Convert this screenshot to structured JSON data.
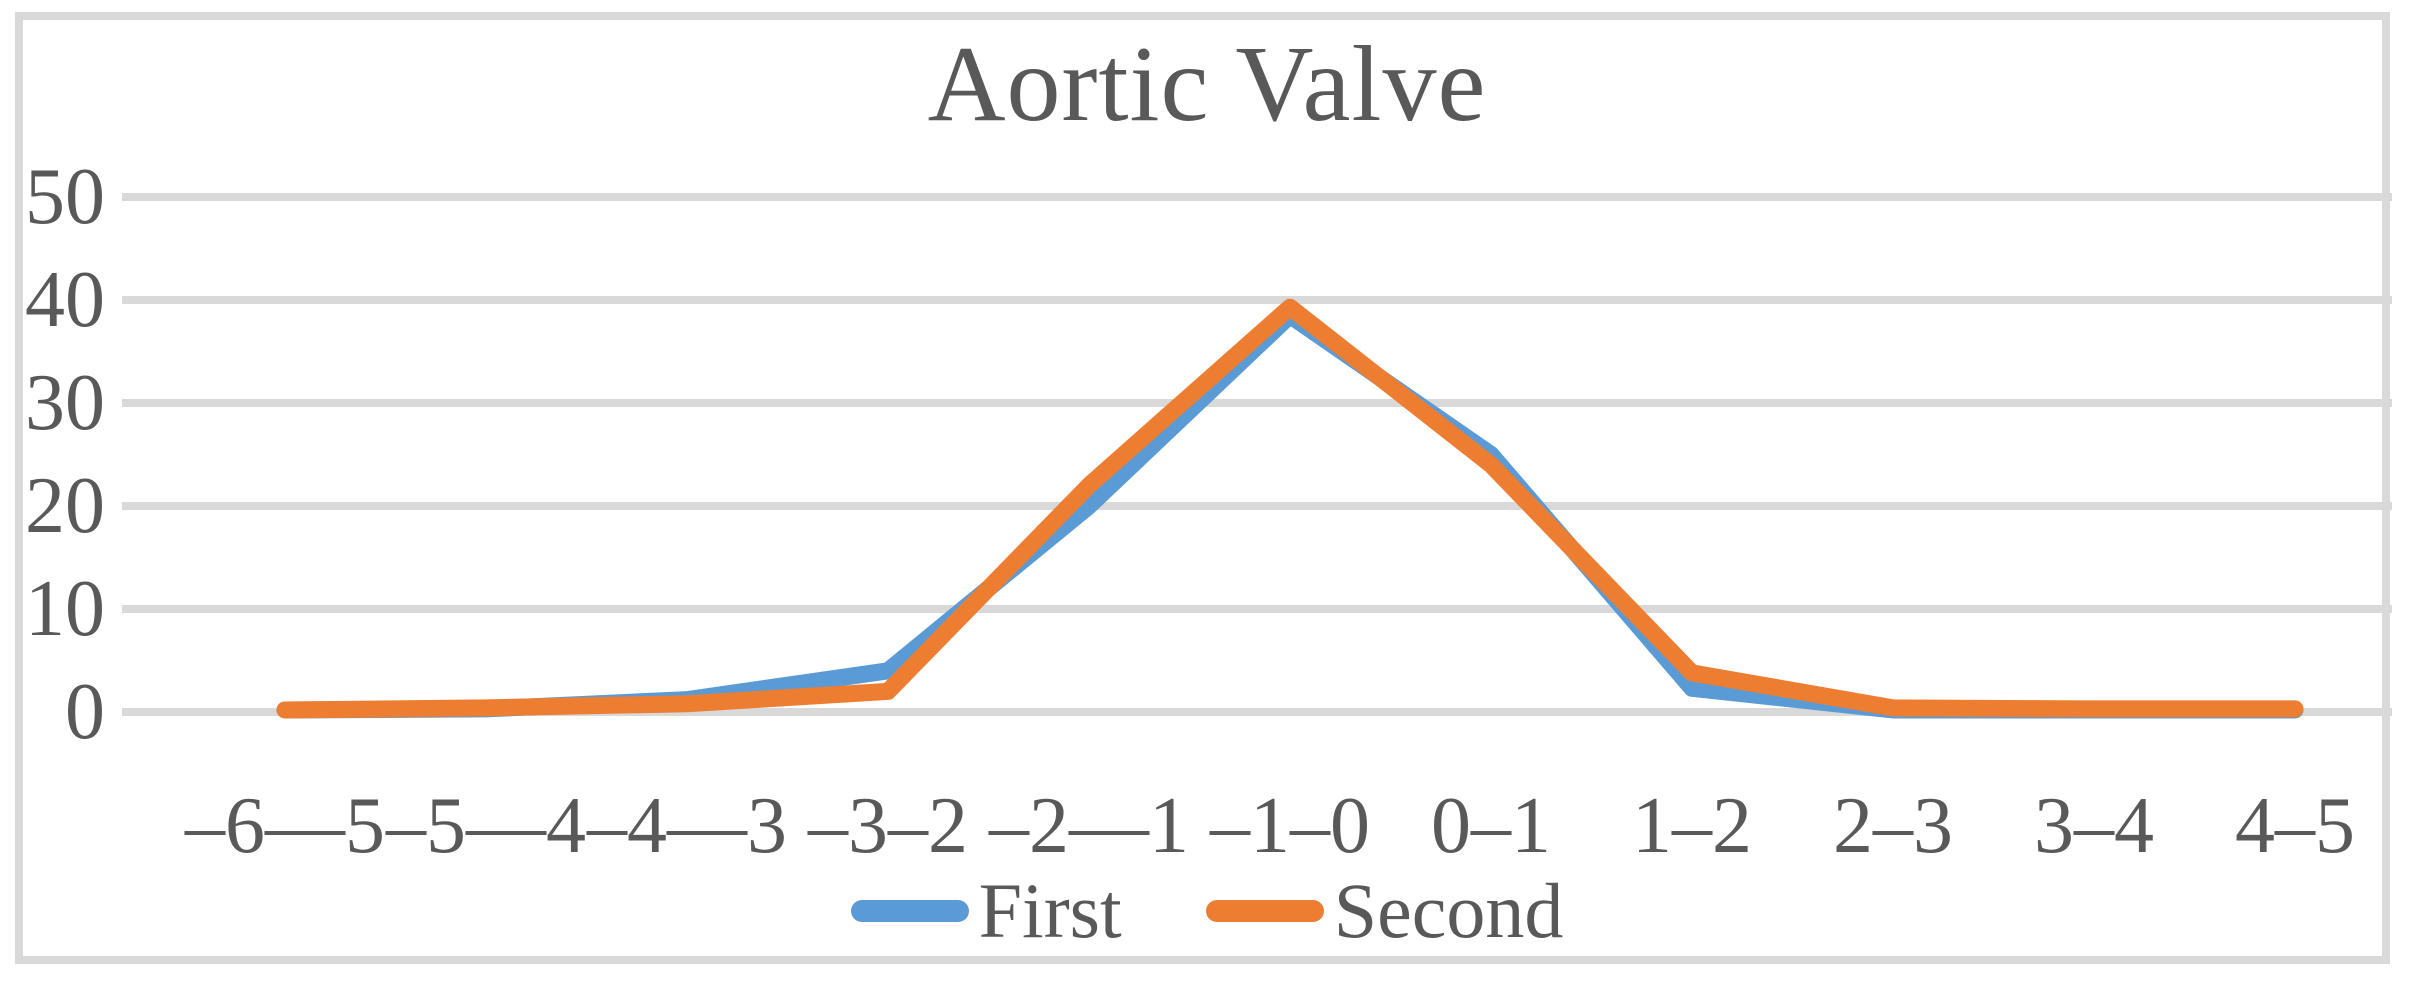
{
  "chart_data": {
    "type": "line",
    "title": "Aortic Valve",
    "categories": [
      "–6––5",
      "–5––4",
      "–4––3",
      "–3–2",
      "–2––1",
      "–1–0",
      "0–1",
      "1–2",
      "2–3",
      "3–4",
      "4–5"
    ],
    "series": [
      {
        "name": "First",
        "color": "#5B9BD5",
        "values": [
          0.2,
          0.3,
          1.2,
          4.0,
          20.0,
          38.5,
          25.0,
          2.3,
          0.2,
          0.2,
          0.2
        ]
      },
      {
        "name": "Second",
        "color": "#ED7D31",
        "values": [
          0.2,
          0.4,
          0.8,
          2.0,
          22.0,
          39.3,
          24.0,
          3.8,
          0.4,
          0.3,
          0.3
        ]
      }
    ],
    "y_ticks": [
      0,
      10,
      20,
      30,
      40,
      50
    ],
    "ylim": [
      0,
      50
    ],
    "xlabel": "",
    "ylabel": "",
    "grid": "horizontal",
    "legend_position": "bottom",
    "colors": {
      "text": "#595959",
      "gridline": "#D9D9D9",
      "frame_border": "#D9D9D9",
      "background": "#FFFFFF"
    }
  }
}
